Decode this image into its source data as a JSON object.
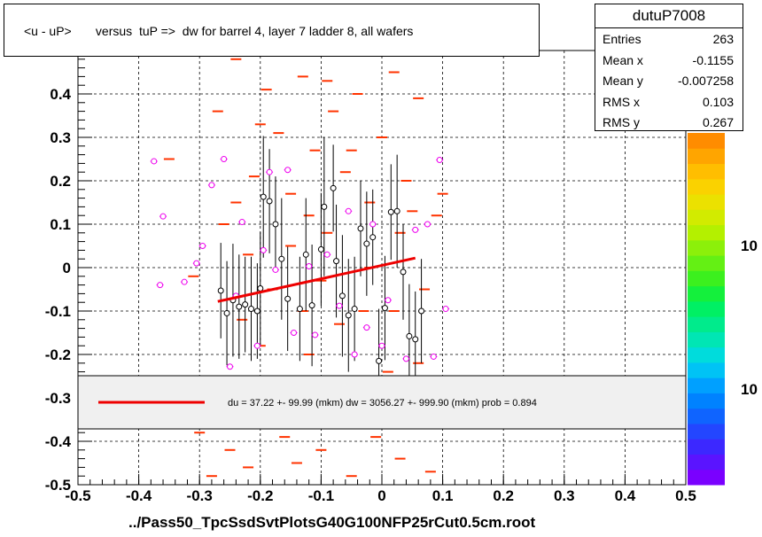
{
  "title": "<u - uP>       versus  tuP =>  dw for barrel 4, layer 7 ladder 8, all wafers",
  "stats": {
    "name": "dutuP7008",
    "rows": [
      {
        "key": "Entries",
        "value": "263"
      },
      {
        "key": "Mean x",
        "value": "-0.1155"
      },
      {
        "key": "Mean y",
        "value": "-0.007258"
      },
      {
        "key": "RMS x",
        "value": "0.103"
      },
      {
        "key": "RMS y",
        "value": "0.267"
      }
    ]
  },
  "legend_text": "du =   37.22 +- 99.99 (mkm) dw = 3056.27 +- 999.90 (mkm) prob = 0.894",
  "x_axis_title": "../Pass50_TpcSsdSvtPlotsG40G100NFP25rCut0.5cm.root",
  "colors": {
    "fit": "#ee0000",
    "hist": "#ff3300",
    "profile_black": "#000000",
    "profile_magenta": "#ee00ee"
  },
  "chart_data": {
    "type": "scatter",
    "xlim": [
      -0.5,
      0.5
    ],
    "ylim": [
      -0.5,
      0.5
    ],
    "x_ticks": [
      "-0.5",
      "-0.4",
      "-0.3",
      "-0.2",
      "-0.1",
      "0",
      "0.1",
      "0.2",
      "0.3",
      "0.4",
      "0.5"
    ],
    "y_ticks": [
      "-0.5",
      "-0.4",
      "-0.3",
      "-0.2",
      "-0.1",
      "0",
      "0.1",
      "0.2",
      "0.3",
      "0.4"
    ],
    "y_top_tick_partial": "0.5",
    "grid": true,
    "colorbar_labels": [
      "10",
      "10"
    ],
    "fit_line": {
      "x": [
        -0.27,
        0.055
      ],
      "y": [
        -0.078,
        0.022
      ]
    },
    "profile_black": [
      {
        "x": -0.265,
        "y": -0.053,
        "e": 0.11
      },
      {
        "x": -0.255,
        "y": -0.105,
        "e": 0.12
      },
      {
        "x": -0.245,
        "y": -0.075,
        "e": 0.13
      },
      {
        "x": -0.235,
        "y": -0.09,
        "e": 0.12
      },
      {
        "x": -0.225,
        "y": -0.085,
        "e": 0.11
      },
      {
        "x": -0.215,
        "y": -0.095,
        "e": 0.12
      },
      {
        "x": -0.205,
        "y": -0.1,
        "e": 0.11
      },
      {
        "x": -0.2,
        "y": -0.048,
        "e": 0.13
      },
      {
        "x": -0.195,
        "y": 0.163,
        "e": 0.14
      },
      {
        "x": -0.185,
        "y": 0.153,
        "e": 0.12
      },
      {
        "x": -0.175,
        "y": 0.1,
        "e": 0.11
      },
      {
        "x": -0.165,
        "y": 0.02,
        "e": 0.14
      },
      {
        "x": -0.155,
        "y": -0.072,
        "e": 0.12
      },
      {
        "x": -0.135,
        "y": -0.095,
        "e": 0.12
      },
      {
        "x": -0.125,
        "y": 0.03,
        "e": 0.13
      },
      {
        "x": -0.115,
        "y": -0.087,
        "e": 0.14
      },
      {
        "x": -0.1,
        "y": 0.042,
        "e": 0.13
      },
      {
        "x": -0.095,
        "y": 0.14,
        "e": 0.16
      },
      {
        "x": -0.08,
        "y": 0.183,
        "e": 0.1
      },
      {
        "x": -0.075,
        "y": 0.015,
        "e": 0.13
      },
      {
        "x": -0.065,
        "y": -0.065,
        "e": 0.14
      },
      {
        "x": -0.055,
        "y": -0.11,
        "e": 0.13
      },
      {
        "x": -0.045,
        "y": -0.095,
        "e": 0.12
      },
      {
        "x": -0.035,
        "y": 0.09,
        "e": 0.11
      },
      {
        "x": -0.025,
        "y": 0.055,
        "e": 0.12
      },
      {
        "x": -0.015,
        "y": 0.07,
        "e": 0.11
      },
      {
        "x": -0.005,
        "y": -0.215,
        "e": 0.12
      },
      {
        "x": 0.005,
        "y": -0.093,
        "e": 0.12
      },
      {
        "x": 0.015,
        "y": 0.128,
        "e": 0.11
      },
      {
        "x": 0.025,
        "y": 0.13,
        "e": 0.13
      },
      {
        "x": 0.035,
        "y": -0.01,
        "e": 0.11
      },
      {
        "x": 0.045,
        "y": -0.158,
        "e": 0.12
      },
      {
        "x": 0.055,
        "y": -0.165,
        "e": 0.11
      },
      {
        "x": 0.065,
        "y": -0.1,
        "e": 0.12
      }
    ],
    "profile_magenta": [
      {
        "x": -0.375,
        "y": 0.245
      },
      {
        "x": -0.365,
        "y": -0.04
      },
      {
        "x": -0.36,
        "y": 0.118
      },
      {
        "x": -0.325,
        "y": -0.033
      },
      {
        "x": -0.305,
        "y": 0.01
      },
      {
        "x": -0.295,
        "y": 0.05
      },
      {
        "x": -0.28,
        "y": 0.19
      },
      {
        "x": -0.26,
        "y": 0.25
      },
      {
        "x": -0.25,
        "y": -0.228
      },
      {
        "x": -0.24,
        "y": -0.065
      },
      {
        "x": -0.23,
        "y": 0.105
      },
      {
        "x": -0.205,
        "y": -0.18
      },
      {
        "x": -0.195,
        "y": 0.04
      },
      {
        "x": -0.185,
        "y": 0.22
      },
      {
        "x": -0.175,
        "y": -0.005
      },
      {
        "x": -0.155,
        "y": 0.225
      },
      {
        "x": -0.145,
        "y": -0.15
      },
      {
        "x": -0.12,
        "y": 0.003
      },
      {
        "x": -0.11,
        "y": -0.155
      },
      {
        "x": -0.09,
        "y": 0.03
      },
      {
        "x": -0.07,
        "y": -0.088
      },
      {
        "x": -0.055,
        "y": 0.13
      },
      {
        "x": -0.045,
        "y": -0.2
      },
      {
        "x": -0.025,
        "y": -0.138
      },
      {
        "x": -0.015,
        "y": 0.1
      },
      {
        "x": 0.0,
        "y": -0.18
      },
      {
        "x": 0.01,
        "y": -0.075
      },
      {
        "x": 0.04,
        "y": -0.21
      },
      {
        "x": 0.055,
        "y": 0.087
      },
      {
        "x": 0.075,
        "y": 0.1
      },
      {
        "x": 0.085,
        "y": -0.205
      },
      {
        "x": 0.095,
        "y": 0.248
      },
      {
        "x": 0.105,
        "y": -0.095
      }
    ],
    "hist_bins": [
      {
        "x": -0.35,
        "y": 0.25
      },
      {
        "x": -0.31,
        "y": -0.02
      },
      {
        "x": -0.3,
        "y": -0.38
      },
      {
        "x": -0.28,
        "y": -0.48
      },
      {
        "x": -0.27,
        "y": 0.36
      },
      {
        "x": -0.26,
        "y": 0.1
      },
      {
        "x": -0.25,
        "y": -0.42
      },
      {
        "x": -0.24,
        "y": 0.48
      },
      {
        "x": -0.23,
        "y": -0.12
      },
      {
        "x": -0.22,
        "y": -0.46
      },
      {
        "x": -0.21,
        "y": 0.21
      },
      {
        "x": -0.2,
        "y": -0.18
      },
      {
        "x": -0.19,
        "y": 0.41
      },
      {
        "x": -0.18,
        "y": -0.05
      },
      {
        "x": -0.17,
        "y": 0.31
      },
      {
        "x": -0.16,
        "y": -0.39
      },
      {
        "x": -0.15,
        "y": 0.17
      },
      {
        "x": -0.14,
        "y": -0.45
      },
      {
        "x": -0.13,
        "y": 0.44
      },
      {
        "x": -0.12,
        "y": -0.2
      },
      {
        "x": -0.11,
        "y": 0.27
      },
      {
        "x": -0.1,
        "y": -0.42
      },
      {
        "x": -0.09,
        "y": 0.08
      },
      {
        "x": -0.08,
        "y": 0.36
      },
      {
        "x": -0.07,
        "y": -0.33
      },
      {
        "x": -0.06,
        "y": 0.22
      },
      {
        "x": -0.05,
        "y": -0.48
      },
      {
        "x": -0.04,
        "y": 0.4
      },
      {
        "x": -0.03,
        "y": -0.1
      },
      {
        "x": -0.02,
        "y": 0.15
      },
      {
        "x": -0.01,
        "y": -0.39
      },
      {
        "x": 0.0,
        "y": 0.3
      },
      {
        "x": 0.01,
        "y": -0.24
      },
      {
        "x": 0.02,
        "y": 0.45
      },
      {
        "x": 0.03,
        "y": -0.44
      },
      {
        "x": 0.04,
        "y": 0.2
      },
      {
        "x": 0.05,
        "y": -0.36
      },
      {
        "x": 0.06,
        "y": 0.39
      },
      {
        "x": 0.07,
        "y": -0.05
      },
      {
        "x": 0.08,
        "y": -0.47
      },
      {
        "x": 0.09,
        "y": 0.12
      },
      {
        "x": 0.1,
        "y": 0.17
      },
      {
        "x": -0.22,
        "y": 0.03
      },
      {
        "x": -0.12,
        "y": 0.12
      },
      {
        "x": -0.02,
        "y": 0.0
      },
      {
        "x": 0.03,
        "y": 0.08
      },
      {
        "x": -0.17,
        "y": -0.26
      },
      {
        "x": -0.07,
        "y": -0.13
      },
      {
        "x": 0.0,
        "y": -0.31
      },
      {
        "x": -0.26,
        "y": -0.36
      },
      {
        "x": -0.15,
        "y": 0.05
      },
      {
        "x": -0.05,
        "y": 0.27
      },
      {
        "x": -0.1,
        "y": -0.03
      },
      {
        "x": 0.06,
        "y": -0.22
      },
      {
        "x": -0.2,
        "y": 0.33
      },
      {
        "x": -0.09,
        "y": 0.43
      },
      {
        "x": 0.02,
        "y": -0.1
      },
      {
        "x": -0.24,
        "y": 0.15
      },
      {
        "x": -0.13,
        "y": -0.1
      },
      {
        "x": 0.05,
        "y": 0.13
      }
    ]
  }
}
